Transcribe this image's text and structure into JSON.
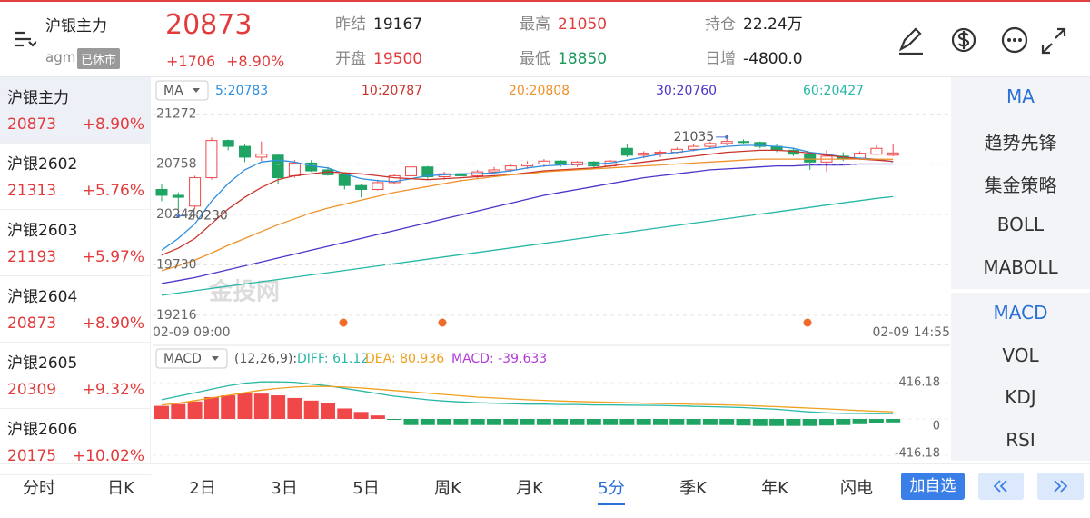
{
  "header": {
    "name": "沪银主力",
    "code": "agm",
    "status": "已休市",
    "price": "20873",
    "change": "+1706",
    "change_pct": "+8.90%",
    "stats": [
      {
        "label": "昨结",
        "value": "19167"
      },
      {
        "label": "开盘",
        "value": "19500"
      },
      {
        "label": "最高",
        "value": "21050"
      },
      {
        "label": "最低",
        "value": "18850"
      },
      {
        "label": "持仓",
        "value": "22.24万"
      },
      {
        "label": "日增",
        "value": "-4800.0"
      }
    ]
  },
  "watchlist": [
    {
      "name": "沪银主力",
      "price": "20873",
      "change_pct": "+8.90%"
    },
    {
      "name": "沪银2602",
      "price": "21313",
      "change_pct": "+5.76%"
    },
    {
      "name": "沪银2603",
      "price": "21193",
      "change_pct": "+5.97%"
    },
    {
      "name": "沪银2604",
      "price": "20873",
      "change_pct": "+8.90%"
    },
    {
      "name": "沪银2605",
      "price": "20309",
      "change_pct": "+9.32%"
    },
    {
      "name": "沪银2606",
      "price": "20175",
      "change_pct": "+10.02%"
    }
  ],
  "indicators": {
    "main": [
      "MA",
      "趋势先锋",
      "集金策略",
      "BOLL",
      "MABOLL"
    ],
    "sub": [
      "MACD",
      "VOL",
      "KDJ",
      "RSI"
    ]
  },
  "periods": [
    "分时",
    "日K",
    "2日",
    "3日",
    "5日",
    "周K",
    "月K",
    "5分",
    "季K",
    "年K",
    "闪电"
  ],
  "add_button": "加自选",
  "chart_data": [
    {
      "type": "candlestick",
      "indicator": "MA",
      "watermark": "金投网",
      "categories": [
        "02-09 09:00",
        null,
        null,
        null,
        null,
        null,
        null,
        null,
        null,
        null,
        null,
        null,
        null,
        null,
        null,
        null,
        null,
        null,
        null,
        null,
        null,
        null,
        null,
        null,
        null,
        null,
        null,
        null,
        null,
        null,
        null,
        null,
        null,
        null,
        null,
        null,
        null,
        null,
        null,
        null,
        null,
        null,
        null,
        null,
        "02-09 14:55"
      ],
      "open": [
        20500,
        20440,
        20330,
        20620,
        21000,
        20940,
        20830,
        20850,
        20640,
        20770,
        20700,
        20650,
        20540,
        20500,
        20570,
        20640,
        20730,
        20630,
        20660,
        20640,
        20680,
        20700,
        20740,
        20760,
        20790,
        20750,
        20780,
        20740,
        20920,
        20850,
        20870,
        20880,
        20910,
        20940,
        20970,
        20990,
        20980,
        20940,
        20900,
        20860,
        20780,
        20840,
        20820,
        20860,
        20850
      ],
      "high": [
        20560,
        20470,
        20640,
        21030,
        21010,
        20960,
        20990,
        20860,
        20800,
        20800,
        20730,
        20660,
        20560,
        20600,
        20660,
        20750,
        20740,
        20680,
        20690,
        20700,
        20730,
        20760,
        20790,
        20810,
        20800,
        20790,
        20790,
        20800,
        20960,
        20890,
        20900,
        20930,
        20960,
        20990,
        21035,
        21010,
        20990,
        20960,
        20920,
        20880,
        20900,
        20880,
        20890,
        20950,
        20960
      ],
      "low": [
        20380,
        20230,
        20300,
        20600,
        20900,
        20780,
        20790,
        20560,
        20620,
        20680,
        20640,
        20500,
        20420,
        20490,
        20550,
        20620,
        20610,
        20600,
        20560,
        20610,
        20660,
        20680,
        20710,
        20730,
        20730,
        20730,
        20720,
        20730,
        20830,
        20820,
        20830,
        20860,
        20890,
        20920,
        20950,
        20960,
        20920,
        20880,
        20840,
        20700,
        20680,
        20790,
        20800,
        20850,
        20840
      ],
      "close": [
        20440,
        20420,
        20620,
        21000,
        20940,
        20830,
        20860,
        20620,
        20770,
        20690,
        20650,
        20540,
        20500,
        20570,
        20640,
        20730,
        20630,
        20660,
        20640,
        20680,
        20700,
        20740,
        20760,
        20790,
        20750,
        20780,
        20740,
        20790,
        20850,
        20870,
        20880,
        20910,
        20940,
        20970,
        20990,
        20980,
        20940,
        20900,
        20860,
        20780,
        20840,
        20820,
        20870,
        20920,
        20873
      ],
      "up_color": "#f04848",
      "down_color": "#1fa463",
      "series": [
        {
          "name": "5:20783",
          "color": "#2f8fe0",
          "values": [
            19880,
            20000,
            20150,
            20380,
            20560,
            20700,
            20780,
            20800,
            20780,
            20740,
            20720,
            20660,
            20610,
            20590,
            20580,
            20610,
            20640,
            20650,
            20660,
            20660,
            20670,
            20690,
            20720,
            20740,
            20750,
            20760,
            20760,
            20770,
            20800,
            20830,
            20860,
            20880,
            20900,
            20920,
            20940,
            20950,
            20950,
            20940,
            20920,
            20880,
            20860,
            20830,
            20820,
            20810,
            20783
          ]
        },
        {
          "name": "10:20787",
          "color": "#c8342c",
          "values": [
            19830,
            19900,
            20000,
            20150,
            20300,
            20420,
            20520,
            20600,
            20640,
            20660,
            20680,
            20670,
            20660,
            20640,
            20620,
            20610,
            20600,
            20610,
            20620,
            20630,
            20640,
            20650,
            20670,
            20690,
            20700,
            20710,
            20720,
            20740,
            20760,
            20780,
            20800,
            20820,
            20840,
            20860,
            20880,
            20890,
            20900,
            20900,
            20890,
            20870,
            20850,
            20830,
            20810,
            20800,
            20787
          ]
        },
        {
          "name": "20:20808",
          "color": "#f0922b",
          "values": [
            19670,
            19720,
            19780,
            19850,
            19930,
            20000,
            20070,
            20140,
            20200,
            20260,
            20310,
            20350,
            20390,
            20430,
            20470,
            20500,
            20530,
            20560,
            20590,
            20610,
            20630,
            20650,
            20660,
            20680,
            20690,
            20700,
            20710,
            20720,
            20730,
            20740,
            20750,
            20760,
            20770,
            20780,
            20790,
            20800,
            20810,
            20810,
            20810,
            20810,
            20810,
            20810,
            20810,
            20810,
            20808
          ]
        },
        {
          "name": "30:20760",
          "color": "#4a35c8",
          "values": [
            19540,
            19570,
            19600,
            19640,
            19680,
            19720,
            19760,
            19800,
            19840,
            19880,
            19920,
            19960,
            20000,
            20040,
            20080,
            20120,
            20160,
            20200,
            20240,
            20280,
            20320,
            20360,
            20400,
            20440,
            20470,
            20500,
            20530,
            20560,
            20590,
            20620,
            20640,
            20660,
            20680,
            20700,
            20710,
            20720,
            20730,
            20740,
            20740,
            20750,
            20750,
            20750,
            20760,
            20760,
            20760
          ]
        },
        {
          "name": "60:20427",
          "color": "#27b7a6",
          "values": [
            19420,
            19443,
            19466,
            19489,
            19512,
            19535,
            19558,
            19581,
            19604,
            19627,
            19650,
            19673,
            19696,
            19719,
            19742,
            19765,
            19788,
            19811,
            19834,
            19857,
            19880,
            19903,
            19926,
            19949,
            19972,
            19995,
            20018,
            20041,
            20064,
            20087,
            20110,
            20133,
            20156,
            20179,
            20202,
            20225,
            20248,
            20271,
            20294,
            20317,
            20340,
            20363,
            20386,
            20409,
            20427
          ]
        }
      ],
      "ylim": [
        19140,
        21340
      ],
      "yticks": [
        21272,
        20758,
        20244,
        19730,
        19216
      ],
      "grid": true,
      "annotations": [
        21035,
        20230
      ]
    },
    {
      "type": "bar",
      "indicator": "MACD",
      "params": "(12,26,9):",
      "value_name": "MACD: -39.633",
      "value_color": "#b33ad6",
      "values": [
        150,
        170,
        200,
        250,
        270,
        300,
        290,
        270,
        240,
        210,
        180,
        120,
        80,
        40,
        -10,
        -70,
        -70,
        -70,
        -70,
        -70,
        -70,
        -70,
        -70,
        -70,
        -70,
        -70,
        -70,
        -70,
        -70,
        -70,
        -70,
        -70,
        -70,
        -70,
        -70,
        -75,
        -80,
        -80,
        -80,
        -80,
        -75,
        -70,
        -60,
        -50,
        -39.633
      ],
      "up_color": "#f04848",
      "down_color": "#1fa463",
      "series": [
        {
          "name": "DIFF: 61.12",
          "color": "#27b7a6",
          "values": [
            220,
            260,
            300,
            340,
            380,
            410,
            425,
            426,
            420,
            400,
            380,
            350,
            320,
            290,
            260,
            240,
            220,
            205,
            195,
            185,
            180,
            175,
            170,
            170,
            165,
            165,
            160,
            160,
            158,
            156,
            155,
            150,
            145,
            140,
            135,
            130,
            120,
            110,
            95,
            80,
            70,
            65,
            62,
            60,
            61.12
          ]
        },
        {
          "name": "DEA: 80.936",
          "color": "#f0a020",
          "values": [
            160,
            180,
            210,
            240,
            270,
            300,
            330,
            350,
            365,
            374,
            372,
            365,
            355,
            340,
            325,
            310,
            295,
            280,
            265,
            250,
            240,
            230,
            220,
            212,
            205,
            200,
            195,
            190,
            185,
            180,
            176,
            172,
            168,
            164,
            160,
            155,
            148,
            140,
            132,
            124,
            115,
            105,
            96,
            88,
            80.936
          ]
        }
      ],
      "ylim": [
        -416.18,
        416.18
      ],
      "yticks": [
        416.18,
        0,
        -416.18
      ],
      "grid": true
    }
  ]
}
